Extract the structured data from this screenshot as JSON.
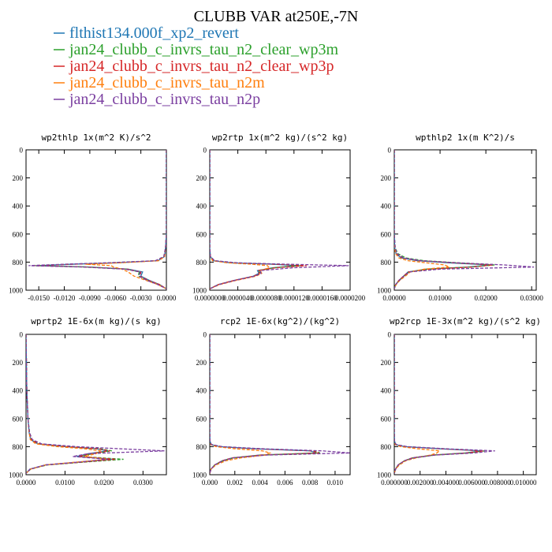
{
  "figure": {
    "title": "CLUBB VAR at250E,-7N"
  },
  "legend": [
    {
      "label": "flthist134.000f_xp2_revert",
      "color": "#1f77b4"
    },
    {
      "label": "jan24_clubb_c_invrs_tau_n2_clear_wp3m",
      "color": "#2ca02c"
    },
    {
      "label": "jan24_clubb_c_invrs_tau_n2_clear_wp3p",
      "color": "#d62728"
    },
    {
      "label": "jan24_clubb_c_invrs_tau_n2m",
      "color": "#ff7f0e"
    },
    {
      "label": "jan24_clubb_c_invrs_tau_n2p",
      "color": "#7b3fa0"
    }
  ],
  "chart_data": [
    {
      "type": "line",
      "title": "wp2thlp  1x(m^2 K)/s^2",
      "xlim": [
        -0.0165,
        0.0
      ],
      "ylim": [
        1000,
        0
      ],
      "y_inverted": true,
      "yticks": [
        0,
        200,
        400,
        600,
        800,
        1000
      ],
      "xticks": [
        -0.015,
        -0.012,
        -0.009,
        -0.006,
        -0.003,
        0.0
      ],
      "xtick_labels": [
        "-0.0150",
        "-0.0120",
        "-0.0090",
        "-0.0060",
        "-0.0030",
        "0.0000"
      ],
      "y": [
        0,
        200,
        400,
        600,
        700,
        760,
        790,
        805,
        815,
        825,
        835,
        850,
        870,
        900,
        930,
        960,
        990
      ],
      "series": [
        {
          "values": [
            0,
            0,
            0,
            0,
            -0.0001,
            -0.0002,
            -0.001,
            -0.006,
            -0.011,
            -0.0152,
            -0.009,
            -0.0045,
            -0.0028,
            -0.003,
            -0.002,
            -0.0008,
            0
          ]
        },
        {
          "values": [
            0,
            0,
            0,
            0,
            -0.0001,
            -0.0003,
            -0.0012,
            -0.0065,
            -0.0115,
            -0.0154,
            -0.0092,
            -0.0047,
            -0.0032,
            -0.0033,
            -0.0022,
            -0.0009,
            0
          ]
        },
        {
          "values": [
            0,
            0,
            0,
            0,
            -0.0001,
            -0.0003,
            -0.0011,
            -0.0062,
            -0.0112,
            -0.0156,
            -0.0094,
            -0.0046,
            -0.003,
            -0.0031,
            -0.0021,
            -0.0008,
            0
          ]
        },
        {
          "values": [
            0,
            0,
            0,
            0,
            -0.0001,
            -0.0002,
            -0.0009,
            -0.0055,
            -0.0095,
            -0.0065,
            -0.0062,
            -0.0052,
            -0.0045,
            -0.0038,
            -0.0024,
            -0.001,
            0
          ]
        },
        {
          "values": [
            0,
            0,
            0,
            0,
            -0.0001,
            -0.0003,
            -0.0013,
            -0.007,
            -0.012,
            -0.0162,
            -0.0098,
            -0.0049,
            -0.0031,
            -0.0032,
            -0.0023,
            -0.001,
            0
          ]
        }
      ]
    },
    {
      "type": "line",
      "title": "wp2rtp  1x(m^2 kg)/(s^2 kg)",
      "xlim": [
        0.0,
        2e-05
      ],
      "ylim": [
        1000,
        0
      ],
      "y_inverted": true,
      "yticks": [
        0,
        200,
        400,
        600,
        800,
        1000
      ],
      "xticks": [
        0.0,
        4e-06,
        8e-06,
        1.2e-05,
        1.6e-05,
        2e-05
      ],
      "xtick_labels": [
        "0.0000000",
        "0.0000040",
        "0.0000080",
        "0.0000120",
        "0.0000160",
        "0.0000200"
      ],
      "y": [
        0,
        200,
        400,
        600,
        700,
        760,
        790,
        805,
        815,
        825,
        840,
        860,
        880,
        900,
        930,
        960,
        990
      ],
      "series": [
        {
          "values": [
            0,
            0,
            0,
            0,
            0,
            1e-07,
            5e-07,
            3e-06,
            9e-06,
            1.25e-05,
            9e-06,
            6.8e-06,
            7e-06,
            6.2e-06,
            3.5e-06,
            1.2e-06,
            0
          ]
        },
        {
          "values": [
            0,
            0,
            0,
            0,
            0,
            1e-07,
            6e-07,
            3.5e-06,
            9.5e-06,
            1.3e-05,
            9.2e-06,
            7e-06,
            7.2e-06,
            6.4e-06,
            3.6e-06,
            1.3e-06,
            0
          ]
        },
        {
          "values": [
            0,
            0,
            0,
            0,
            0,
            1e-07,
            5e-07,
            3.2e-06,
            9.2e-06,
            1.38e-05,
            9.4e-06,
            6.9e-06,
            7.1e-06,
            6.3e-06,
            3.5e-06,
            1.2e-06,
            0
          ]
        },
        {
          "values": [
            0,
            0,
            0,
            0,
            0,
            1e-07,
            4e-07,
            2.5e-06,
            6e-06,
            8.2e-06,
            8.5e-06,
            7.2e-06,
            7.4e-06,
            6.6e-06,
            3.8e-06,
            1.4e-06,
            0
          ]
        },
        {
          "values": [
            0,
            0,
            0,
            0,
            0,
            1e-07,
            7e-07,
            4e-06,
            1.1e-05,
            1.98e-05,
            1.2e-05,
            7.2e-06,
            7.3e-06,
            6.4e-06,
            3.6e-06,
            1.3e-06,
            0
          ]
        }
      ]
    },
    {
      "type": "line",
      "title": "wpthlp2  1x(m K^2)/s",
      "xlim": [
        0.0,
        0.031
      ],
      "ylim": [
        1000,
        0
      ],
      "y_inverted": true,
      "yticks": [
        0,
        200,
        400,
        600,
        800,
        1000
      ],
      "xticks": [
        0.0,
        0.01,
        0.02,
        0.03
      ],
      "xtick_labels": [
        "0.00000",
        "0.01000",
        "0.02000",
        "0.03000"
      ],
      "y": [
        0,
        200,
        400,
        600,
        700,
        740,
        770,
        790,
        805,
        820,
        835,
        850,
        870,
        900,
        930,
        960,
        990
      ],
      "series": [
        {
          "values": [
            0,
            0,
            0,
            0,
            0.0001,
            0.0004,
            0.0015,
            0.005,
            0.012,
            0.021,
            0.016,
            0.007,
            0.003,
            0.002,
            0.001,
            0.0003,
            0
          ]
        },
        {
          "values": [
            0,
            0,
            0,
            0,
            0.0002,
            0.0008,
            0.0025,
            0.0065,
            0.014,
            0.022,
            0.0165,
            0.0072,
            0.0032,
            0.0021,
            0.0011,
            0.0003,
            0
          ]
        },
        {
          "values": [
            0,
            0,
            0,
            0,
            0.0001,
            0.0005,
            0.0018,
            0.0055,
            0.013,
            0.0215,
            0.017,
            0.0075,
            0.0031,
            0.002,
            0.001,
            0.0003,
            0
          ]
        },
        {
          "values": [
            0,
            0,
            0,
            0,
            0.0001,
            0.0003,
            0.001,
            0.003,
            0.007,
            0.011,
            0.012,
            0.0065,
            0.0035,
            0.0024,
            0.0012,
            0.0004,
            0
          ]
        },
        {
          "values": [
            0,
            0,
            0,
            0,
            0.0002,
            0.0006,
            0.002,
            0.006,
            0.014,
            0.024,
            0.0305,
            0.01,
            0.0033,
            0.0021,
            0.0011,
            0.0003,
            0
          ]
        }
      ]
    },
    {
      "type": "line",
      "title": "wprtp2  1E-6x(m kg)/(s kg)",
      "xlim": [
        0.0,
        0.036
      ],
      "ylim": [
        1000,
        0
      ],
      "y_inverted": true,
      "yticks": [
        0,
        200,
        400,
        600,
        800,
        1000
      ],
      "xticks": [
        0.0,
        0.01,
        0.02,
        0.03
      ],
      "xtick_labels": [
        "0.0000",
        "0.0100",
        "0.0200",
        "0.0300"
      ],
      "y": [
        0,
        200,
        400,
        600,
        700,
        750,
        780,
        800,
        815,
        830,
        850,
        870,
        890,
        910,
        930,
        960,
        990
      ],
      "series": [
        {
          "values": [
            0,
            0.0001,
            0.0002,
            0.0005,
            0.0008,
            0.0012,
            0.003,
            0.01,
            0.018,
            0.021,
            0.016,
            0.013,
            0.022,
            0.014,
            0.005,
            0.001,
            0
          ]
        },
        {
          "values": [
            0,
            0.0001,
            0.0002,
            0.0005,
            0.0009,
            0.0015,
            0.0035,
            0.011,
            0.019,
            0.022,
            0.017,
            0.014,
            0.025,
            0.015,
            0.0055,
            0.0012,
            0
          ]
        },
        {
          "values": [
            0,
            0.0001,
            0.0002,
            0.0005,
            0.0008,
            0.0013,
            0.0032,
            0.0105,
            0.0185,
            0.0215,
            0.0165,
            0.0135,
            0.023,
            0.0145,
            0.0052,
            0.0011,
            0
          ]
        },
        {
          "values": [
            0,
            0.0001,
            0.0002,
            0.0005,
            0.0008,
            0.0011,
            0.0025,
            0.008,
            0.015,
            0.019,
            0.018,
            0.015,
            0.021,
            0.013,
            0.005,
            0.0012,
            0
          ]
        },
        {
          "values": [
            0,
            0.0001,
            0.0002,
            0.0005,
            0.0009,
            0.0016,
            0.004,
            0.013,
            0.024,
            0.0355,
            0.016,
            0.012,
            0.021,
            0.0135,
            0.005,
            0.0011,
            0
          ]
        }
      ]
    },
    {
      "type": "line",
      "title": "rcp2  1E-6x(kg^2)/(kg^2)",
      "xlim": [
        0.0,
        0.0112
      ],
      "ylim": [
        1000,
        0
      ],
      "y_inverted": true,
      "yticks": [
        0,
        200,
        400,
        600,
        800,
        1000
      ],
      "xticks": [
        0.0,
        0.002,
        0.004,
        0.006,
        0.008,
        0.01
      ],
      "xtick_labels": [
        "0.000",
        "0.002",
        "0.004",
        "0.006",
        "0.008",
        "0.010"
      ],
      "y": [
        0,
        200,
        400,
        600,
        700,
        760,
        785,
        800,
        815,
        830,
        845,
        860,
        880,
        900,
        930,
        960,
        990
      ],
      "series": [
        {
          "values": [
            0,
            0,
            0,
            0,
            0,
            2e-05,
            0.0001,
            0.0008,
            0.0035,
            0.008,
            0.0085,
            0.004,
            0.0018,
            0.001,
            0.0004,
            0.0001,
            0
          ]
        },
        {
          "values": [
            0,
            0,
            0,
            0,
            0,
            2e-05,
            0.00012,
            0.0009,
            0.0038,
            0.0083,
            0.0088,
            0.0042,
            0.0019,
            0.0011,
            0.0004,
            0.0001,
            0
          ]
        },
        {
          "values": [
            0,
            0,
            0,
            0,
            0,
            2e-05,
            0.00011,
            0.00085,
            0.0036,
            0.0082,
            0.0087,
            0.0041,
            0.0018,
            0.001,
            0.0004,
            0.0001,
            0
          ]
        },
        {
          "values": [
            0,
            0,
            0,
            0,
            0,
            1e-05,
            8e-05,
            0.0005,
            0.002,
            0.0042,
            0.0048,
            0.0044,
            0.0025,
            0.0013,
            0.0005,
            0.0001,
            0
          ]
        },
        {
          "values": [
            0,
            0,
            0,
            0,
            0,
            2e-05,
            0.00013,
            0.001,
            0.0042,
            0.009,
            0.0112,
            0.0045,
            0.0019,
            0.0011,
            0.0004,
            0.0001,
            0
          ]
        }
      ]
    },
    {
      "type": "line",
      "title": "wp2rcp  1E-3x(m^2 kg)/(s^2 kg)",
      "xlim": [
        0.0,
        0.011
      ],
      "ylim": [
        1000,
        0
      ],
      "y_inverted": true,
      "yticks": [
        0,
        200,
        400,
        600,
        800,
        1000
      ],
      "xticks": [
        0.0,
        0.002,
        0.004,
        0.006,
        0.008,
        0.01
      ],
      "xtick_labels": [
        "0.000000",
        "0.002000",
        "0.004000",
        "0.006000",
        "0.008000",
        "0.010000"
      ],
      "y": [
        0,
        200,
        400,
        600,
        700,
        760,
        785,
        800,
        815,
        830,
        845,
        860,
        880,
        900,
        930,
        960,
        990
      ],
      "series": [
        {
          "values": [
            0,
            0,
            0,
            0,
            0,
            2e-05,
            0.0001,
            0.0008,
            0.0035,
            0.0068,
            0.0055,
            0.003,
            0.0014,
            0.0008,
            0.0003,
            0.0001,
            0
          ]
        },
        {
          "values": [
            0,
            0,
            0,
            0,
            0,
            2e-05,
            0.00012,
            0.0009,
            0.0037,
            0.007,
            0.0057,
            0.0031,
            0.0015,
            0.0008,
            0.0003,
            0.0001,
            0
          ]
        },
        {
          "values": [
            0,
            0,
            0,
            0,
            0,
            2e-05,
            0.00011,
            0.00085,
            0.0036,
            0.0069,
            0.0056,
            0.003,
            0.0014,
            0.0008,
            0.0003,
            0.0001,
            0
          ]
        },
        {
          "values": [
            0,
            0,
            0,
            0,
            0,
            1e-05,
            7e-05,
            0.0005,
            0.0018,
            0.0035,
            0.0033,
            0.0028,
            0.0017,
            0.0009,
            0.0004,
            0.0001,
            0
          ]
        },
        {
          "values": [
            0,
            0,
            0,
            0,
            0,
            2e-05,
            0.00013,
            0.001,
            0.004,
            0.0078,
            0.0062,
            0.0032,
            0.0015,
            0.0008,
            0.0003,
            0.0001,
            0
          ]
        }
      ]
    }
  ]
}
